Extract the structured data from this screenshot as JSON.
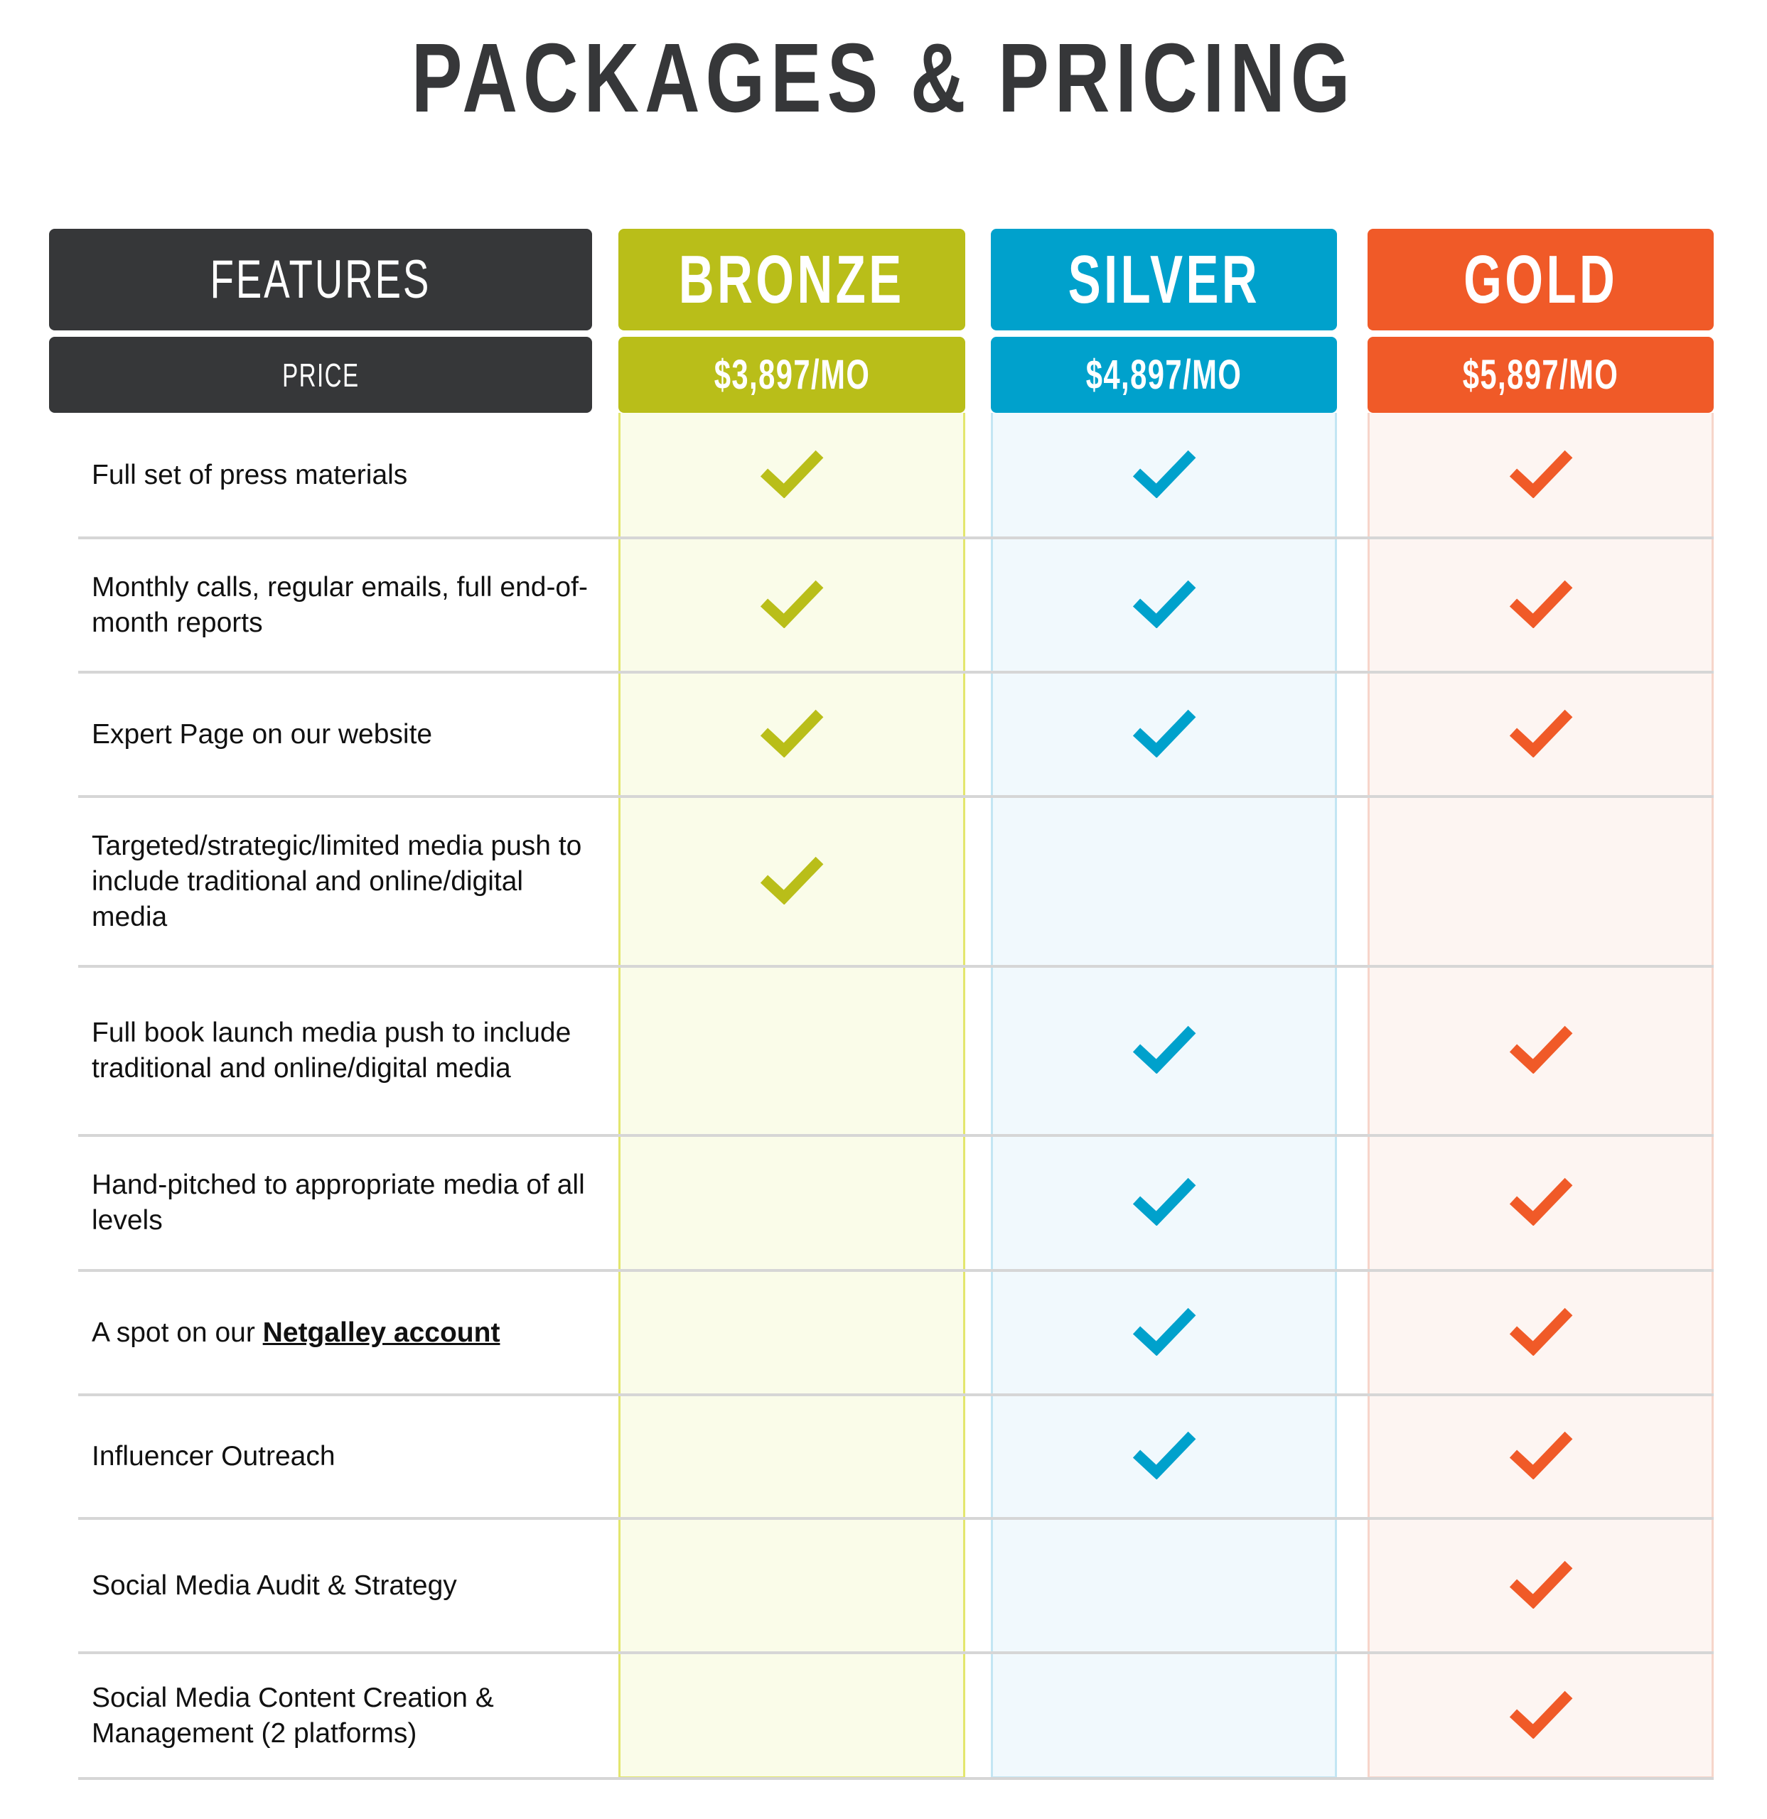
{
  "title": "PACKAGES & PRICING",
  "features_header": {
    "label": "FEATURES",
    "price_label": "PRICE",
    "color": "#363739"
  },
  "plans": [
    {
      "name": "BRONZE",
      "price": "$3,897/MO",
      "color": "#b9be19",
      "bg": "#fafce9",
      "border": "#e3e66e"
    },
    {
      "name": "SILVER",
      "price": "$4,897/MO",
      "color": "#00a1cc",
      "bg": "#f1f9fd",
      "border": "#c3e6f3"
    },
    {
      "name": "GOLD",
      "price": "$5,897/MO",
      "color": "#f05a28",
      "bg": "#fdf5f2",
      "border": "#f7d5ca"
    }
  ],
  "check_icon": "checkmark-icon",
  "features": [
    {
      "label": "Full set of press materials",
      "included": [
        true,
        true,
        true
      ]
    },
    {
      "label": "Monthly calls, regular emails, full end-of-month reports",
      "included": [
        true,
        true,
        true
      ]
    },
    {
      "label": "Expert Page on our website",
      "included": [
        true,
        true,
        true
      ]
    },
    {
      "label": "Targeted/strategic/limited media push to include traditional and online/digital media",
      "included": [
        true,
        false,
        false
      ]
    },
    {
      "label": "Full book launch media push to include traditional and online/digital media",
      "included": [
        false,
        true,
        true
      ]
    },
    {
      "label": "Hand-pitched to appropriate media of all levels",
      "included": [
        false,
        true,
        true
      ]
    },
    {
      "label": "A spot on our ",
      "link": "Netgalley account",
      "included": [
        false,
        true,
        true
      ]
    },
    {
      "label": "Influencer Outreach",
      "included": [
        false,
        true,
        true
      ]
    },
    {
      "label": "Social Media Audit & Strategy",
      "included": [
        false,
        false,
        true
      ]
    },
    {
      "label": "Social Media Content Creation & Management (2 platforms)",
      "included": [
        false,
        false,
        true
      ]
    }
  ]
}
